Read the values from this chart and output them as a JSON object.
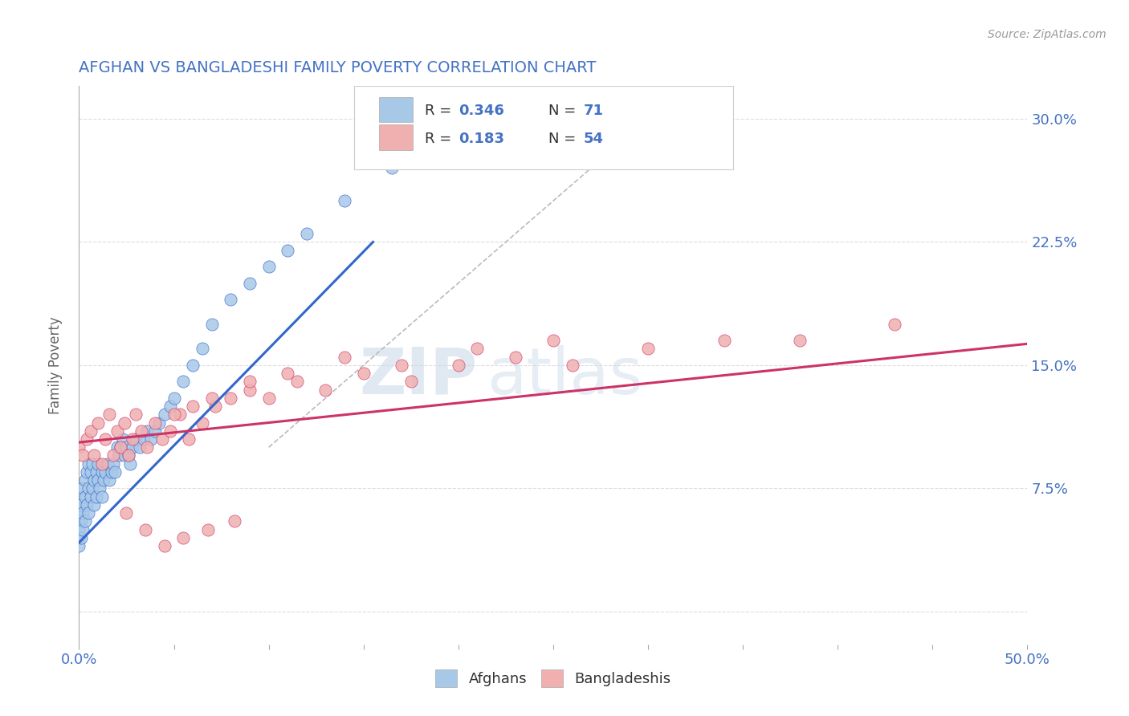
{
  "title": "AFGHAN VS BANGLADESHI FAMILY POVERTY CORRELATION CHART",
  "source": "Source: ZipAtlas.com",
  "ylabel": "Family Poverty",
  "xlim": [
    0.0,
    0.5
  ],
  "ylim": [
    -0.02,
    0.32
  ],
  "ytick_positions": [
    0.0,
    0.075,
    0.15,
    0.225,
    0.3
  ],
  "yticklabels": [
    "",
    "7.5%",
    "15.0%",
    "22.5%",
    "30.0%"
  ],
  "afghan_color": "#a8c8e8",
  "bangladeshi_color": "#f0b0b0",
  "afghan_line_color": "#3366cc",
  "bangladeshi_line_color": "#cc3366",
  "diagonal_color": "#bbbbbb",
  "r_afghan": 0.346,
  "n_afghan": 71,
  "r_bangladeshi": 0.183,
  "n_bangladeshi": 54,
  "watermark_zip": "ZIP",
  "watermark_atlas": "atlas",
  "legend_label_1": "Afghans",
  "legend_label_2": "Bangladeshis",
  "background_color": "#ffffff",
  "plot_bg_color": "#ffffff",
  "grid_color": "#dddddd",
  "title_color": "#4472c4",
  "tick_color": "#4472c4",
  "afghan_scatter_x": [
    0.0,
    0.0,
    0.0,
    0.0,
    0.0,
    0.001,
    0.001,
    0.001,
    0.001,
    0.002,
    0.002,
    0.002,
    0.003,
    0.003,
    0.003,
    0.004,
    0.004,
    0.005,
    0.005,
    0.005,
    0.006,
    0.006,
    0.007,
    0.007,
    0.008,
    0.008,
    0.009,
    0.009,
    0.01,
    0.01,
    0.011,
    0.012,
    0.012,
    0.013,
    0.014,
    0.015,
    0.016,
    0.017,
    0.018,
    0.019,
    0.02,
    0.021,
    0.022,
    0.023,
    0.024,
    0.025,
    0.026,
    0.027,
    0.028,
    0.03,
    0.032,
    0.034,
    0.036,
    0.038,
    0.04,
    0.042,
    0.045,
    0.048,
    0.05,
    0.055,
    0.06,
    0.065,
    0.07,
    0.08,
    0.09,
    0.1,
    0.11,
    0.12,
    0.14,
    0.165,
    0.2
  ],
  "afghan_scatter_y": [
    0.06,
    0.055,
    0.05,
    0.045,
    0.04,
    0.07,
    0.065,
    0.055,
    0.045,
    0.075,
    0.06,
    0.05,
    0.08,
    0.07,
    0.055,
    0.085,
    0.065,
    0.09,
    0.075,
    0.06,
    0.085,
    0.07,
    0.09,
    0.075,
    0.08,
    0.065,
    0.085,
    0.07,
    0.09,
    0.08,
    0.075,
    0.085,
    0.07,
    0.08,
    0.085,
    0.09,
    0.08,
    0.085,
    0.09,
    0.085,
    0.1,
    0.095,
    0.1,
    0.105,
    0.095,
    0.1,
    0.095,
    0.09,
    0.1,
    0.105,
    0.1,
    0.105,
    0.11,
    0.105,
    0.11,
    0.115,
    0.12,
    0.125,
    0.13,
    0.14,
    0.15,
    0.16,
    0.175,
    0.19,
    0.2,
    0.21,
    0.22,
    0.23,
    0.25,
    0.27,
    0.29
  ],
  "bangladeshi_scatter_x": [
    0.0,
    0.002,
    0.004,
    0.006,
    0.008,
    0.01,
    0.012,
    0.014,
    0.016,
    0.018,
    0.02,
    0.022,
    0.024,
    0.026,
    0.028,
    0.03,
    0.033,
    0.036,
    0.04,
    0.044,
    0.048,
    0.053,
    0.058,
    0.065,
    0.072,
    0.08,
    0.09,
    0.1,
    0.115,
    0.13,
    0.15,
    0.175,
    0.2,
    0.23,
    0.26,
    0.3,
    0.34,
    0.38,
    0.43,
    0.05,
    0.06,
    0.07,
    0.09,
    0.11,
    0.14,
    0.17,
    0.21,
    0.25,
    0.025,
    0.035,
    0.045,
    0.055,
    0.068,
    0.082
  ],
  "bangladeshi_scatter_y": [
    0.1,
    0.095,
    0.105,
    0.11,
    0.095,
    0.115,
    0.09,
    0.105,
    0.12,
    0.095,
    0.11,
    0.1,
    0.115,
    0.095,
    0.105,
    0.12,
    0.11,
    0.1,
    0.115,
    0.105,
    0.11,
    0.12,
    0.105,
    0.115,
    0.125,
    0.13,
    0.135,
    0.13,
    0.14,
    0.135,
    0.145,
    0.14,
    0.15,
    0.155,
    0.15,
    0.16,
    0.165,
    0.165,
    0.175,
    0.12,
    0.125,
    0.13,
    0.14,
    0.145,
    0.155,
    0.15,
    0.16,
    0.165,
    0.06,
    0.05,
    0.04,
    0.045,
    0.05,
    0.055
  ],
  "afghan_line_x": [
    0.0,
    0.155
  ],
  "afghan_line_y": [
    0.042,
    0.225
  ],
  "bangladeshi_line_x": [
    0.0,
    0.5
  ],
  "bangladeshi_line_y": [
    0.103,
    0.163
  ]
}
